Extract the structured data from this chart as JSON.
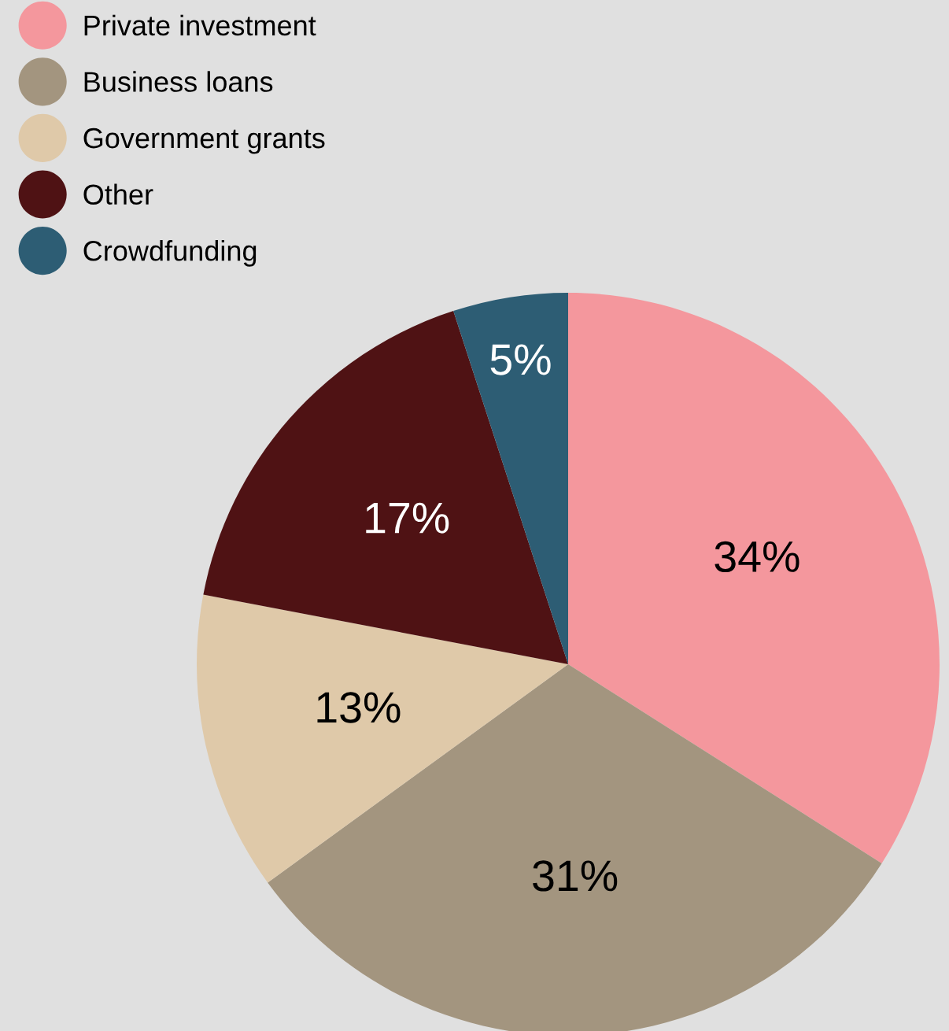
{
  "chart_data": {
    "type": "pie",
    "categories": [
      "Private investment",
      "Business loans",
      "Government grants",
      "Other",
      "Crowdfunding"
    ],
    "values": [
      34,
      31,
      13,
      17,
      5
    ],
    "colors": [
      "#f4979d",
      "#a3957f",
      "#dfc9a9",
      "#4f1214",
      "#2d5d74"
    ],
    "value_labels": [
      "34%",
      "31%",
      "13%",
      "17%",
      "5%"
    ],
    "legend": "top left"
  }
}
